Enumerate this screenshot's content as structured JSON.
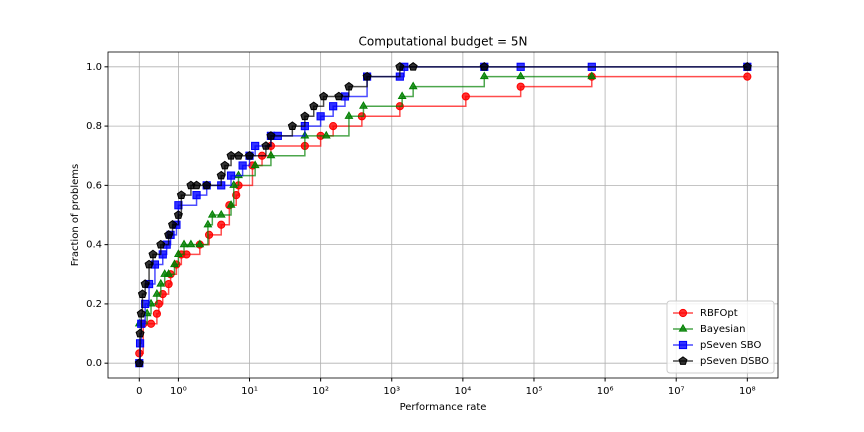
{
  "chart_data": {
    "type": "step",
    "title": "Computational budget = 5N",
    "x_label": "Performance rate",
    "y_label": "Fraction of problems",
    "xscale": "symlog",
    "xlim": [
      -0.8,
      270000000
    ],
    "ylim": [
      -0.05,
      1.05
    ],
    "xticks": [
      0,
      {
        "value": 1,
        "label": "10⁰"
      },
      {
        "value": 10,
        "label": "10¹"
      },
      {
        "value": 100,
        "label": "10²"
      },
      {
        "value": 1000,
        "label": "10³"
      },
      {
        "value": 10000,
        "label": "10⁴"
      },
      {
        "value": 100000,
        "label": "10⁵"
      },
      {
        "value": 1000000,
        "label": "10⁶"
      },
      {
        "value": 10000000,
        "label": "10⁷"
      },
      {
        "value": 100000000,
        "label": "10⁸"
      }
    ],
    "yticks": [
      {
        "value": 0,
        "label": "0.0"
      },
      0.2,
      0.4,
      0.6,
      0.8,
      {
        "value": 1,
        "label": "1.0"
      }
    ],
    "grid": true,
    "legend": "lower right",
    "series": [
      {
        "name": "RBFOpt",
        "color": "#ff0000",
        "marker": "circle",
        "x": [
          0,
          0.1,
          0.3,
          0.45,
          0.5,
          0.6,
          0.75,
          0.8,
          0.95,
          1.1,
          1.3,
          2,
          2.7,
          4,
          5.2,
          6.5,
          7,
          11,
          15,
          20,
          60,
          100,
          150,
          380,
          1300,
          11000,
          65000,
          650000,
          100000000
        ],
        "values": [
          0.033,
          0.133,
          0.133,
          0.167,
          0.2,
          0.233,
          0.267,
          0.3,
          0.333,
          0.367,
          0.367,
          0.4,
          0.433,
          0.467,
          0.533,
          0.567,
          0.6,
          0.667,
          0.7,
          0.733,
          0.733,
          0.767,
          0.8,
          0.833,
          0.867,
          0.9,
          0.933,
          0.967,
          0.967
        ]
      },
      {
        "name": "Bayesian",
        "color": "#008000",
        "marker": "triangle",
        "x": [
          0,
          0.2,
          0.3,
          0.45,
          0.55,
          0.65,
          0.75,
          0.9,
          1,
          1.2,
          1.5,
          2,
          2.6,
          3,
          4,
          5.5,
          6,
          7,
          12,
          20,
          60,
          120,
          250,
          400,
          1400,
          2000,
          20000,
          65000,
          650000
        ],
        "values": [
          0.133,
          0.167,
          0.2,
          0.233,
          0.267,
          0.3,
          0.3,
          0.333,
          0.367,
          0.4,
          0.4,
          0.4,
          0.467,
          0.5,
          0.5,
          0.533,
          0.6,
          0.633,
          0.667,
          0.7,
          0.767,
          0.767,
          0.833,
          0.867,
          0.9,
          0.933,
          0.967,
          0.967,
          0.967
        ]
      },
      {
        "name": "pSeven SBO",
        "color": "#0000ff",
        "marker": "square",
        "x": [
          0,
          0.02,
          0.05,
          0.15,
          0.25,
          0.4,
          0.6,
          0.7,
          0.8,
          0.95,
          1,
          1.8,
          2.5,
          4,
          5.5,
          8,
          10,
          12,
          20,
          25,
          60,
          100,
          150,
          220,
          450,
          1300,
          1500,
          20000,
          65000,
          650000,
          100000000
        ],
        "values": [
          0,
          0.067,
          0.133,
          0.2,
          0.267,
          0.333,
          0.367,
          0.4,
          0.433,
          0.467,
          0.533,
          0.567,
          0.6,
          0.6,
          0.633,
          0.667,
          0.7,
          0.733,
          0.767,
          0.767,
          0.8,
          0.833,
          0.867,
          0.9,
          0.967,
          0.967,
          1,
          1,
          1,
          1,
          1
        ]
      },
      {
        "name": "pSeven DSBO",
        "color": "#000000",
        "marker": "pentagon",
        "x": [
          0,
          0.02,
          0.05,
          0.08,
          0.15,
          0.25,
          0.35,
          0.55,
          0.75,
          0.85,
          1,
          1.1,
          1.5,
          1.8,
          2.5,
          4,
          4.5,
          5.5,
          7,
          10,
          17,
          20,
          40,
          60,
          80,
          110,
          180,
          250,
          450,
          1300,
          2000,
          20000,
          100000000
        ],
        "values": [
          0,
          0.1,
          0.167,
          0.233,
          0.267,
          0.333,
          0.367,
          0.4,
          0.433,
          0.467,
          0.5,
          0.567,
          0.6,
          0.6,
          0.6,
          0.633,
          0.667,
          0.7,
          0.7,
          0.7,
          0.733,
          0.767,
          0.8,
          0.833,
          0.867,
          0.9,
          0.9,
          0.933,
          0.967,
          1,
          1,
          1,
          1
        ]
      }
    ]
  }
}
